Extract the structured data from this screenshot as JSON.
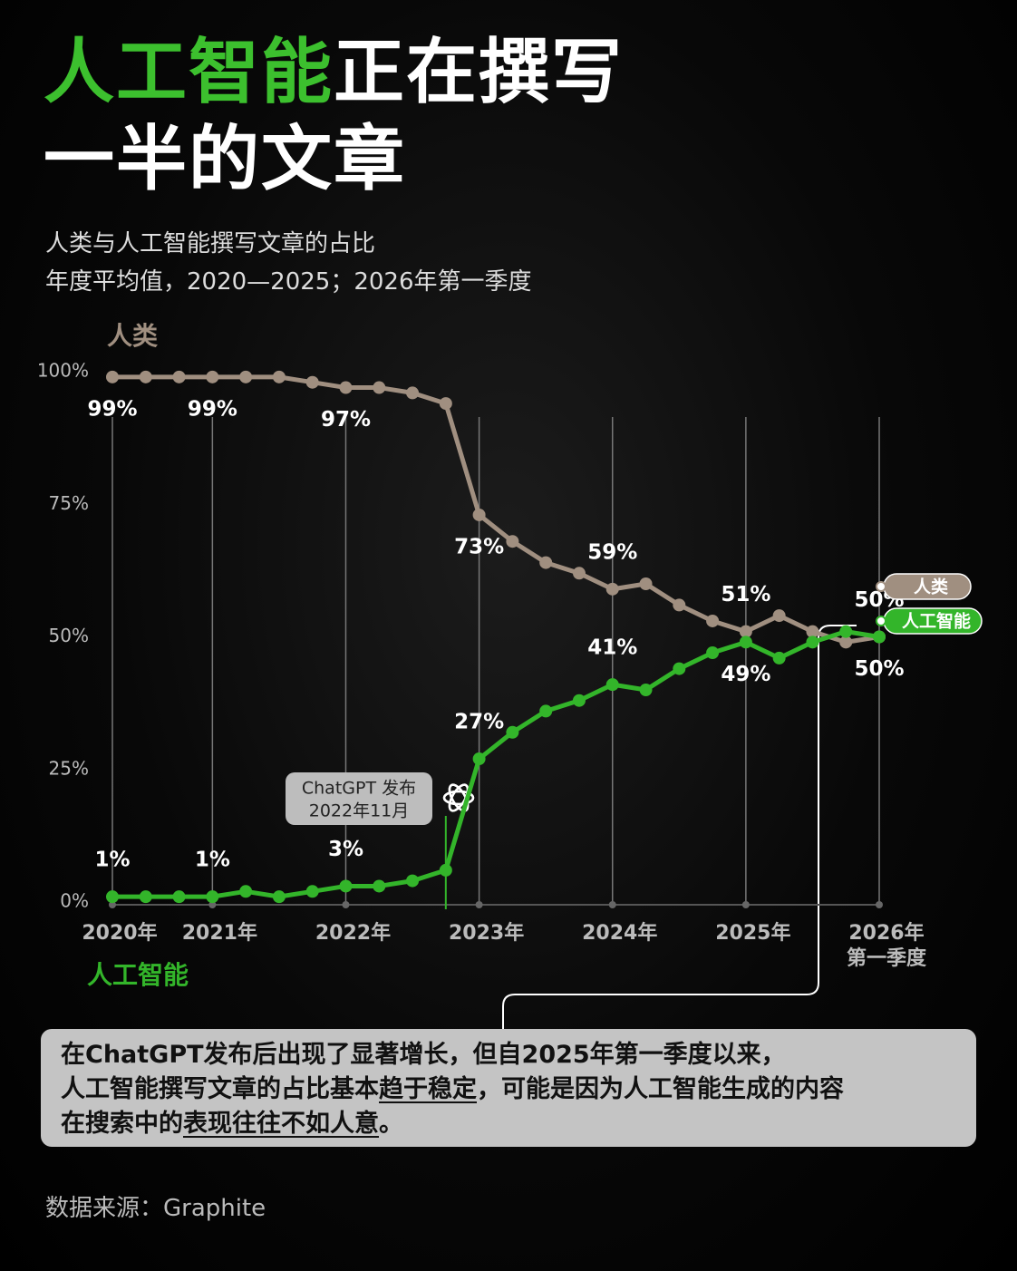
{
  "header": {
    "title_green": "人工智能",
    "title_white": "正在撰写",
    "title_line2": "一半的文章",
    "subtitle": [
      "人类与人工智能撰写文章的占比",
      "年度平均值，2020—2025；2026年第一季度"
    ]
  },
  "chart_data": {
    "type": "line",
    "categories": [
      "2020年",
      null,
      null,
      "2021年",
      null,
      null,
      null,
      "2022年",
      null,
      null,
      null,
      "2023年",
      null,
      null,
      null,
      "2024年",
      null,
      null,
      null,
      "2025年",
      null,
      null,
      null,
      "2026年\n第一季度"
    ],
    "series": [
      {
        "name": "人类",
        "color": "#a08f80",
        "values": [
          99,
          99,
          99,
          99,
          99,
          99,
          98,
          97,
          97,
          96,
          94,
          73,
          68,
          64,
          62,
          59,
          60,
          56,
          53,
          51,
          54,
          51,
          49,
          50
        ],
        "value_labels": [
          "99%",
          null,
          null,
          "99%",
          null,
          null,
          null,
          "97%",
          null,
          null,
          null,
          "73%",
          null,
          null,
          null,
          "59%",
          null,
          null,
          null,
          "51%",
          null,
          null,
          null,
          "50%"
        ]
      },
      {
        "name": "人工智能",
        "color": "#33b52a",
        "values": [
          1,
          1,
          1,
          1,
          2,
          1,
          2,
          3,
          3,
          4,
          6,
          27,
          32,
          36,
          38,
          41,
          40,
          44,
          47,
          49,
          46,
          49,
          51,
          50
        ],
        "value_labels": [
          "1%",
          null,
          null,
          "1%",
          null,
          null,
          null,
          "3%",
          null,
          null,
          null,
          "27%",
          null,
          null,
          null,
          "41%",
          null,
          null,
          null,
          "49%",
          null,
          null,
          null,
          "50%"
        ]
      }
    ],
    "ylim": [
      0,
      100
    ],
    "yticks": [
      {
        "value": 0,
        "label": "0%"
      },
      {
        "value": 25,
        "label": "25%"
      },
      {
        "value": 50,
        "label": "50%"
      },
      {
        "value": 75,
        "label": "75%"
      },
      {
        "value": 100,
        "label": "100%"
      }
    ],
    "grid": false,
    "annotation": [
      "ChatGPT 发布",
      "2022年11月"
    ]
  },
  "callout": {
    "segments": [
      "在ChatGPT发布后出现了显著增长，但自2025年第一季度以来，",
      "人工智能撰写文章的占比基本",
      "趋于稳定",
      "，可能是因为人工智能生成的内容",
      "在搜索中的",
      "表现往往不如人意",
      "。"
    ]
  },
  "source": "数据来源：Graphite"
}
